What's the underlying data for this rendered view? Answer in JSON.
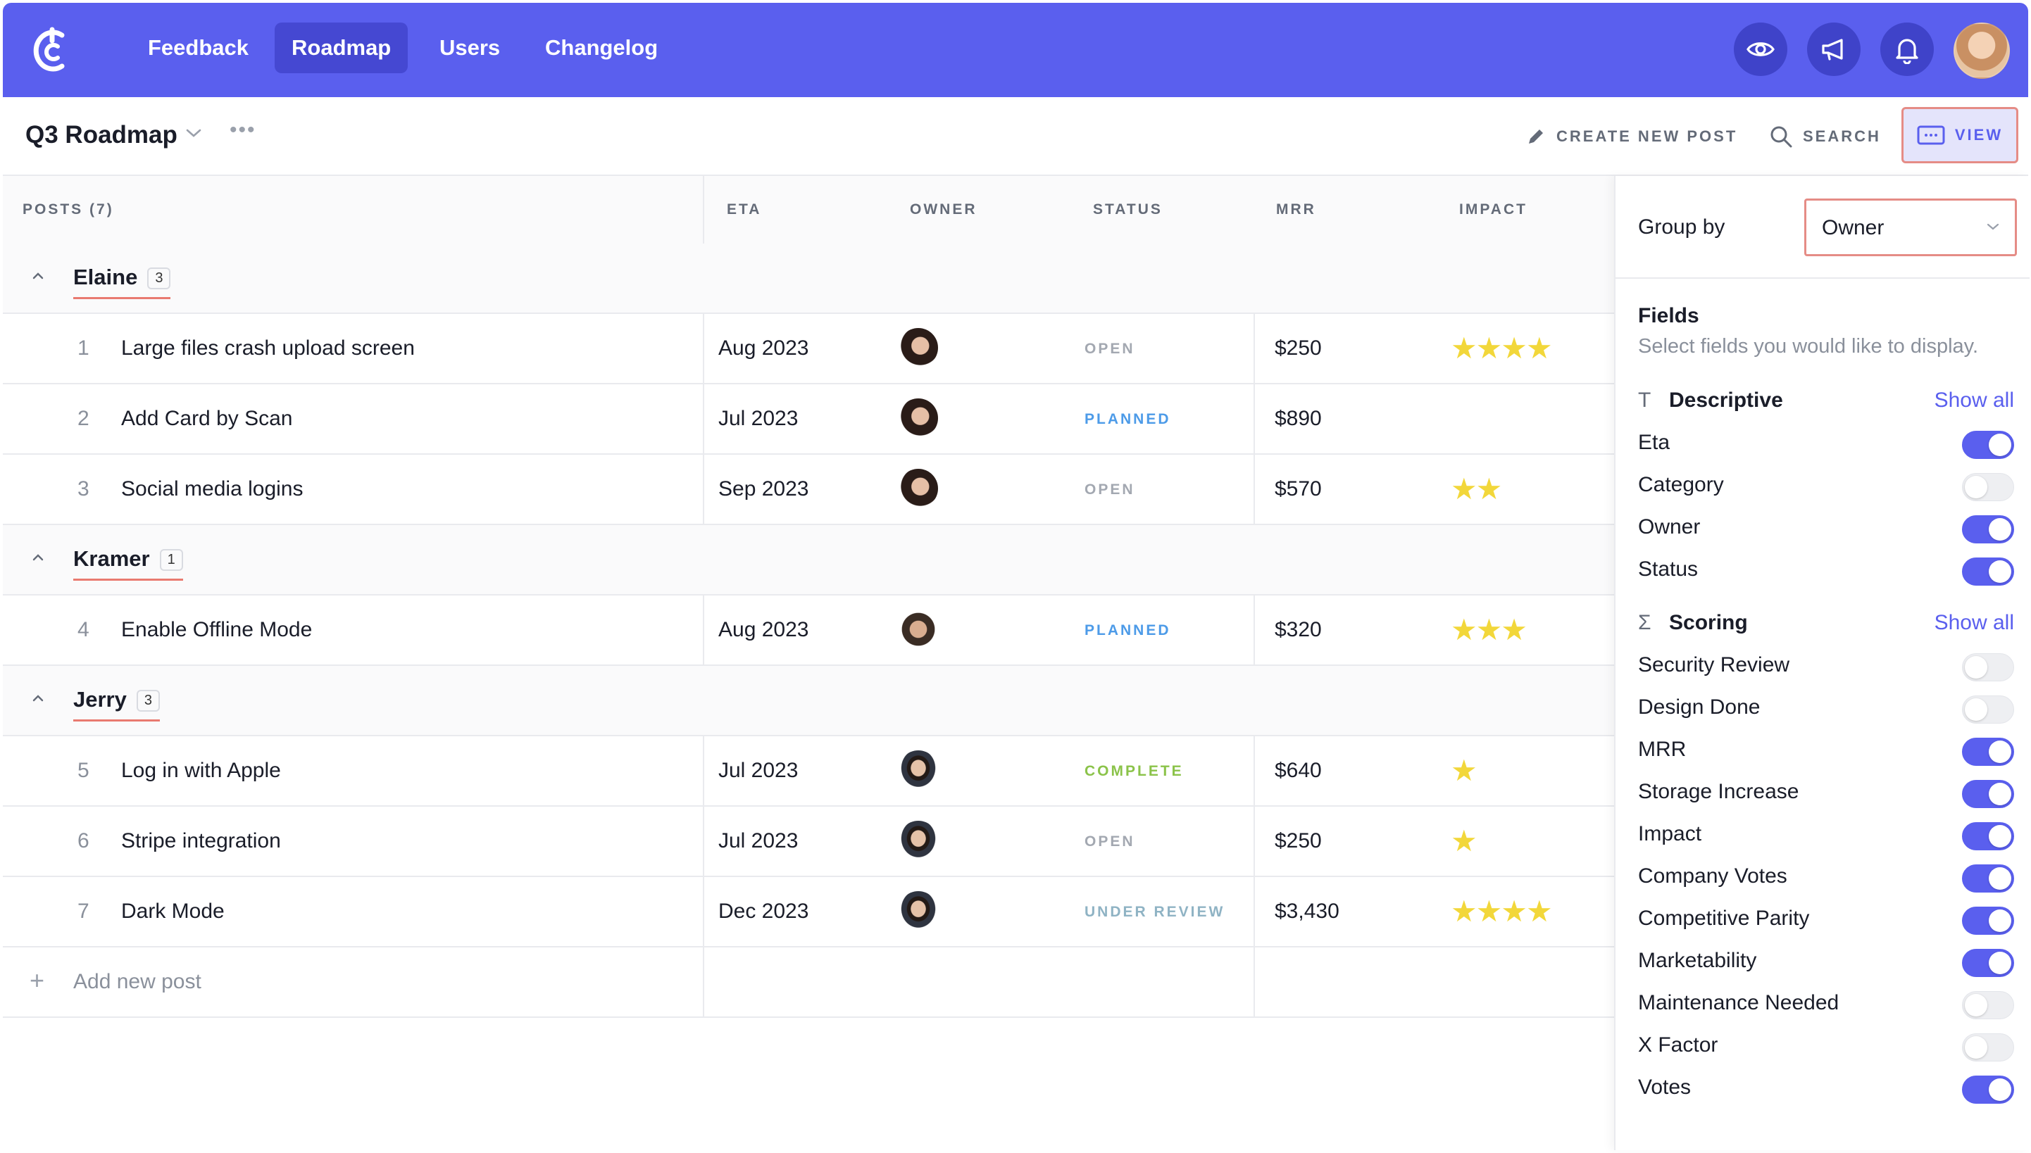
{
  "nav": {
    "items": [
      {
        "label": "Feedback",
        "active": false
      },
      {
        "label": "Roadmap",
        "active": true
      },
      {
        "label": "Users",
        "active": false
      },
      {
        "label": "Changelog",
        "active": false
      }
    ],
    "icons": [
      "eye-icon",
      "megaphone-icon",
      "bell-icon"
    ]
  },
  "header": {
    "title": "Q3 Roadmap",
    "create_label": "CREATE NEW POST",
    "search_label": "SEARCH",
    "view_label": "VIEW"
  },
  "table": {
    "columns": {
      "posts": "POSTS (7)",
      "eta": "ETA",
      "owner": "OWNER",
      "status": "STATUS",
      "mrr": "MRR",
      "impact": "IMPACT"
    },
    "groups": [
      {
        "name": "Elaine",
        "count": "3",
        "posts": [
          {
            "num": "1",
            "title": "Large files crash upload screen",
            "eta": "Aug 2023",
            "owner": "elaine",
            "status": "OPEN",
            "mrr": "$250",
            "impact": 4
          },
          {
            "num": "2",
            "title": "Add Card by Scan",
            "eta": "Jul 2023",
            "owner": "elaine",
            "status": "PLANNED",
            "mrr": "$890",
            "impact": 0
          },
          {
            "num": "3",
            "title": "Social media logins",
            "eta": "Sep 2023",
            "owner": "elaine",
            "status": "OPEN",
            "mrr": "$570",
            "impact": 2
          }
        ]
      },
      {
        "name": "Kramer",
        "count": "1",
        "posts": [
          {
            "num": "4",
            "title": "Enable Offline Mode",
            "eta": "Aug 2023",
            "owner": "kramer",
            "status": "PLANNED",
            "mrr": "$320",
            "impact": 3
          }
        ]
      },
      {
        "name": "Jerry",
        "count": "3",
        "posts": [
          {
            "num": "5",
            "title": "Log in with Apple",
            "eta": "Jul 2023",
            "owner": "jerry",
            "status": "COMPLETE",
            "mrr": "$640",
            "impact": 1
          },
          {
            "num": "6",
            "title": "Stripe integration",
            "eta": "Jul 2023",
            "owner": "jerry",
            "status": "OPEN",
            "mrr": "$250",
            "impact": 1
          },
          {
            "num": "7",
            "title": "Dark Mode",
            "eta": "Dec 2023",
            "owner": "jerry",
            "status": "UNDER REVIEW",
            "mrr": "$3,430",
            "impact": 4
          }
        ]
      }
    ],
    "add_label": "Add new post"
  },
  "status_colors": {
    "OPEN": "#a3a8b1",
    "PLANNED": "#4d9be8",
    "COMPLETE": "#8bc34a",
    "UNDER REVIEW": "#8fb3c4"
  },
  "panel": {
    "group_by_label": "Group by",
    "group_by_value": "Owner",
    "fields_title": "Fields",
    "fields_subtitle": "Select fields you would like to display.",
    "sections": [
      {
        "symbol": "T",
        "title": "Descriptive",
        "show_all": "Show all",
        "fields": [
          {
            "label": "Eta",
            "on": true
          },
          {
            "label": "Category",
            "on": false
          },
          {
            "label": "Owner",
            "on": true
          },
          {
            "label": "Status",
            "on": true
          }
        ]
      },
      {
        "symbol": "Σ",
        "title": "Scoring",
        "show_all": "Show all",
        "fields": [
          {
            "label": "Security Review",
            "on": false
          },
          {
            "label": "Design Done",
            "on": false
          },
          {
            "label": "MRR",
            "on": true
          },
          {
            "label": "Storage Increase",
            "on": true
          },
          {
            "label": "Impact",
            "on": true
          },
          {
            "label": "Company Votes",
            "on": true
          },
          {
            "label": "Competitive Parity",
            "on": true
          },
          {
            "label": "Marketability",
            "on": true
          },
          {
            "label": "Maintenance Needed",
            "on": false
          },
          {
            "label": "X Factor",
            "on": false
          },
          {
            "label": "Votes",
            "on": true
          }
        ]
      }
    ]
  },
  "colors": {
    "accent": "#5a5fee",
    "star": "#f2d73a",
    "highlight": "#e58c86"
  }
}
